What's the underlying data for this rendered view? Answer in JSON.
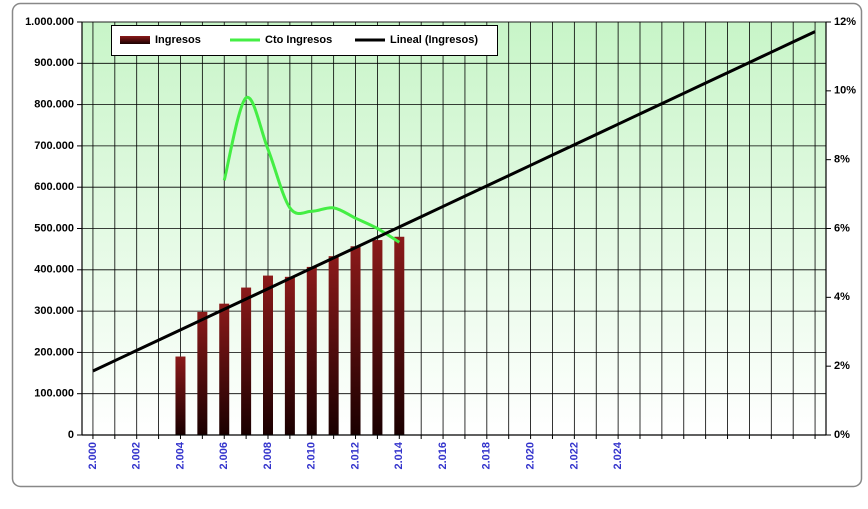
{
  "chart_data": {
    "type": "combo",
    "categories": [
      "2.000",
      null,
      "2.002",
      null,
      "2.004",
      null,
      "2.006",
      null,
      "2.008",
      null,
      "2.010",
      null,
      "2.012",
      null,
      "2.014",
      null,
      "2.016",
      null,
      "2.018",
      null,
      "2.020",
      null,
      "2.022",
      null,
      "2.024",
      null,
      null,
      null,
      null,
      null,
      null,
      null,
      null,
      null
    ],
    "series": [
      {
        "name": "Ingresos",
        "type": "bar",
        "color": "#8b1a1a",
        "values": [
          null,
          null,
          null,
          null,
          190000,
          298000,
          318000,
          357000,
          386000,
          383000,
          407000,
          433000,
          457000,
          472000,
          480000,
          null,
          null,
          null,
          null,
          null,
          null,
          null,
          null,
          null,
          null,
          null,
          null,
          null,
          null,
          null,
          null,
          null,
          null,
          null
        ]
      },
      {
        "name": "Cto Ingresos",
        "type": "line",
        "axis": "y2",
        "color": "#44ee44",
        "values": [
          null,
          null,
          null,
          null,
          null,
          null,
          7.4,
          9.8,
          8.3,
          6.6,
          6.5,
          6.6,
          6.3,
          6.0,
          5.6,
          null,
          null,
          null,
          null,
          null,
          null,
          null,
          null,
          null,
          null,
          null,
          null,
          null,
          null,
          null,
          null,
          null,
          null,
          null
        ]
      },
      {
        "name": "Lineal (Ingresos)",
        "type": "line",
        "color": "#000000",
        "values": [
          155000,
          179900,
          204800,
          229700,
          254600,
          279500,
          304400,
          329300,
          354200,
          379100,
          404000,
          428900,
          453800,
          478700,
          503600,
          528500,
          553400,
          578300,
          603200,
          628100,
          653000,
          677900,
          702800,
          727700,
          752600,
          777500,
          802400,
          827300,
          852200,
          877100,
          902000,
          926900,
          951800,
          976700
        ]
      }
    ],
    "ylim": [
      0,
      1000000
    ],
    "yticks": [
      0,
      {
        "value": 100000,
        "label": "100.000"
      },
      {
        "value": 200000,
        "label": "200.000"
      },
      {
        "value": 300000,
        "label": "300.000"
      },
      {
        "value": 400000,
        "label": "400.000"
      },
      {
        "value": 500000,
        "label": "500.000"
      },
      {
        "value": 600000,
        "label": "600.000"
      },
      {
        "value": 700000,
        "label": "700.000"
      },
      {
        "value": 800000,
        "label": "800.000"
      },
      {
        "value": 900000,
        "label": "900.000"
      },
      {
        "value": 1000000,
        "label": "1.000.000"
      }
    ],
    "y2lim": [
      0,
      12
    ],
    "y2ticks": [
      {
        "value": 0,
        "label": "0%"
      },
      {
        "value": 2,
        "label": "2%"
      },
      {
        "value": 4,
        "label": "4%"
      },
      {
        "value": 6,
        "label": "6%"
      },
      {
        "value": 8,
        "label": "8%"
      },
      {
        "value": 10,
        "label": "10%"
      },
      {
        "value": 12,
        "label": "12%"
      }
    ],
    "grid": true,
    "legend": "top"
  }
}
